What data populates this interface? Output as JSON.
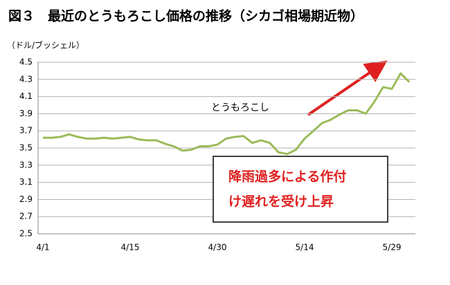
{
  "chart_data": {
    "type": "line",
    "title": "図３　最近のとうもろこし価格の推移（シカゴ相場期近物）",
    "y_label": "（ドル/ブッシェル）",
    "categories": [
      "4/1",
      null,
      null,
      null,
      null,
      null,
      null,
      null,
      null,
      null,
      "4/15",
      null,
      null,
      null,
      null,
      null,
      null,
      null,
      null,
      null,
      "4/30",
      null,
      null,
      null,
      null,
      null,
      null,
      null,
      null,
      null,
      "5/14",
      null,
      null,
      null,
      null,
      null,
      null,
      null,
      null,
      null,
      "5/29",
      null,
      null
    ],
    "series": [
      {
        "name": "とうもろこし",
        "color": "#9bbb59",
        "values": [
          3.62,
          3.62,
          3.63,
          3.66,
          3.63,
          3.61,
          3.61,
          3.62,
          3.61,
          3.62,
          3.63,
          3.6,
          3.59,
          3.59,
          3.55,
          3.52,
          3.47,
          3.48,
          3.52,
          3.52,
          3.54,
          3.61,
          3.63,
          3.64,
          3.56,
          3.59,
          3.56,
          3.45,
          3.43,
          3.48,
          3.61,
          3.7,
          3.79,
          3.83,
          3.89,
          3.94,
          3.94,
          3.9,
          4.04,
          4.21,
          4.19,
          4.37,
          4.27
        ]
      }
    ],
    "ylim": [
      2.5,
      4.5
    ],
    "yticks": [
      2.5,
      2.7,
      2.9,
      3.1,
      3.3,
      3.5,
      3.7,
      3.9,
      4.1,
      4.3,
      4.5
    ],
    "grid": true,
    "annotation": [
      "降雨過多による作付",
      "け遅れを受け上昇"
    ]
  }
}
